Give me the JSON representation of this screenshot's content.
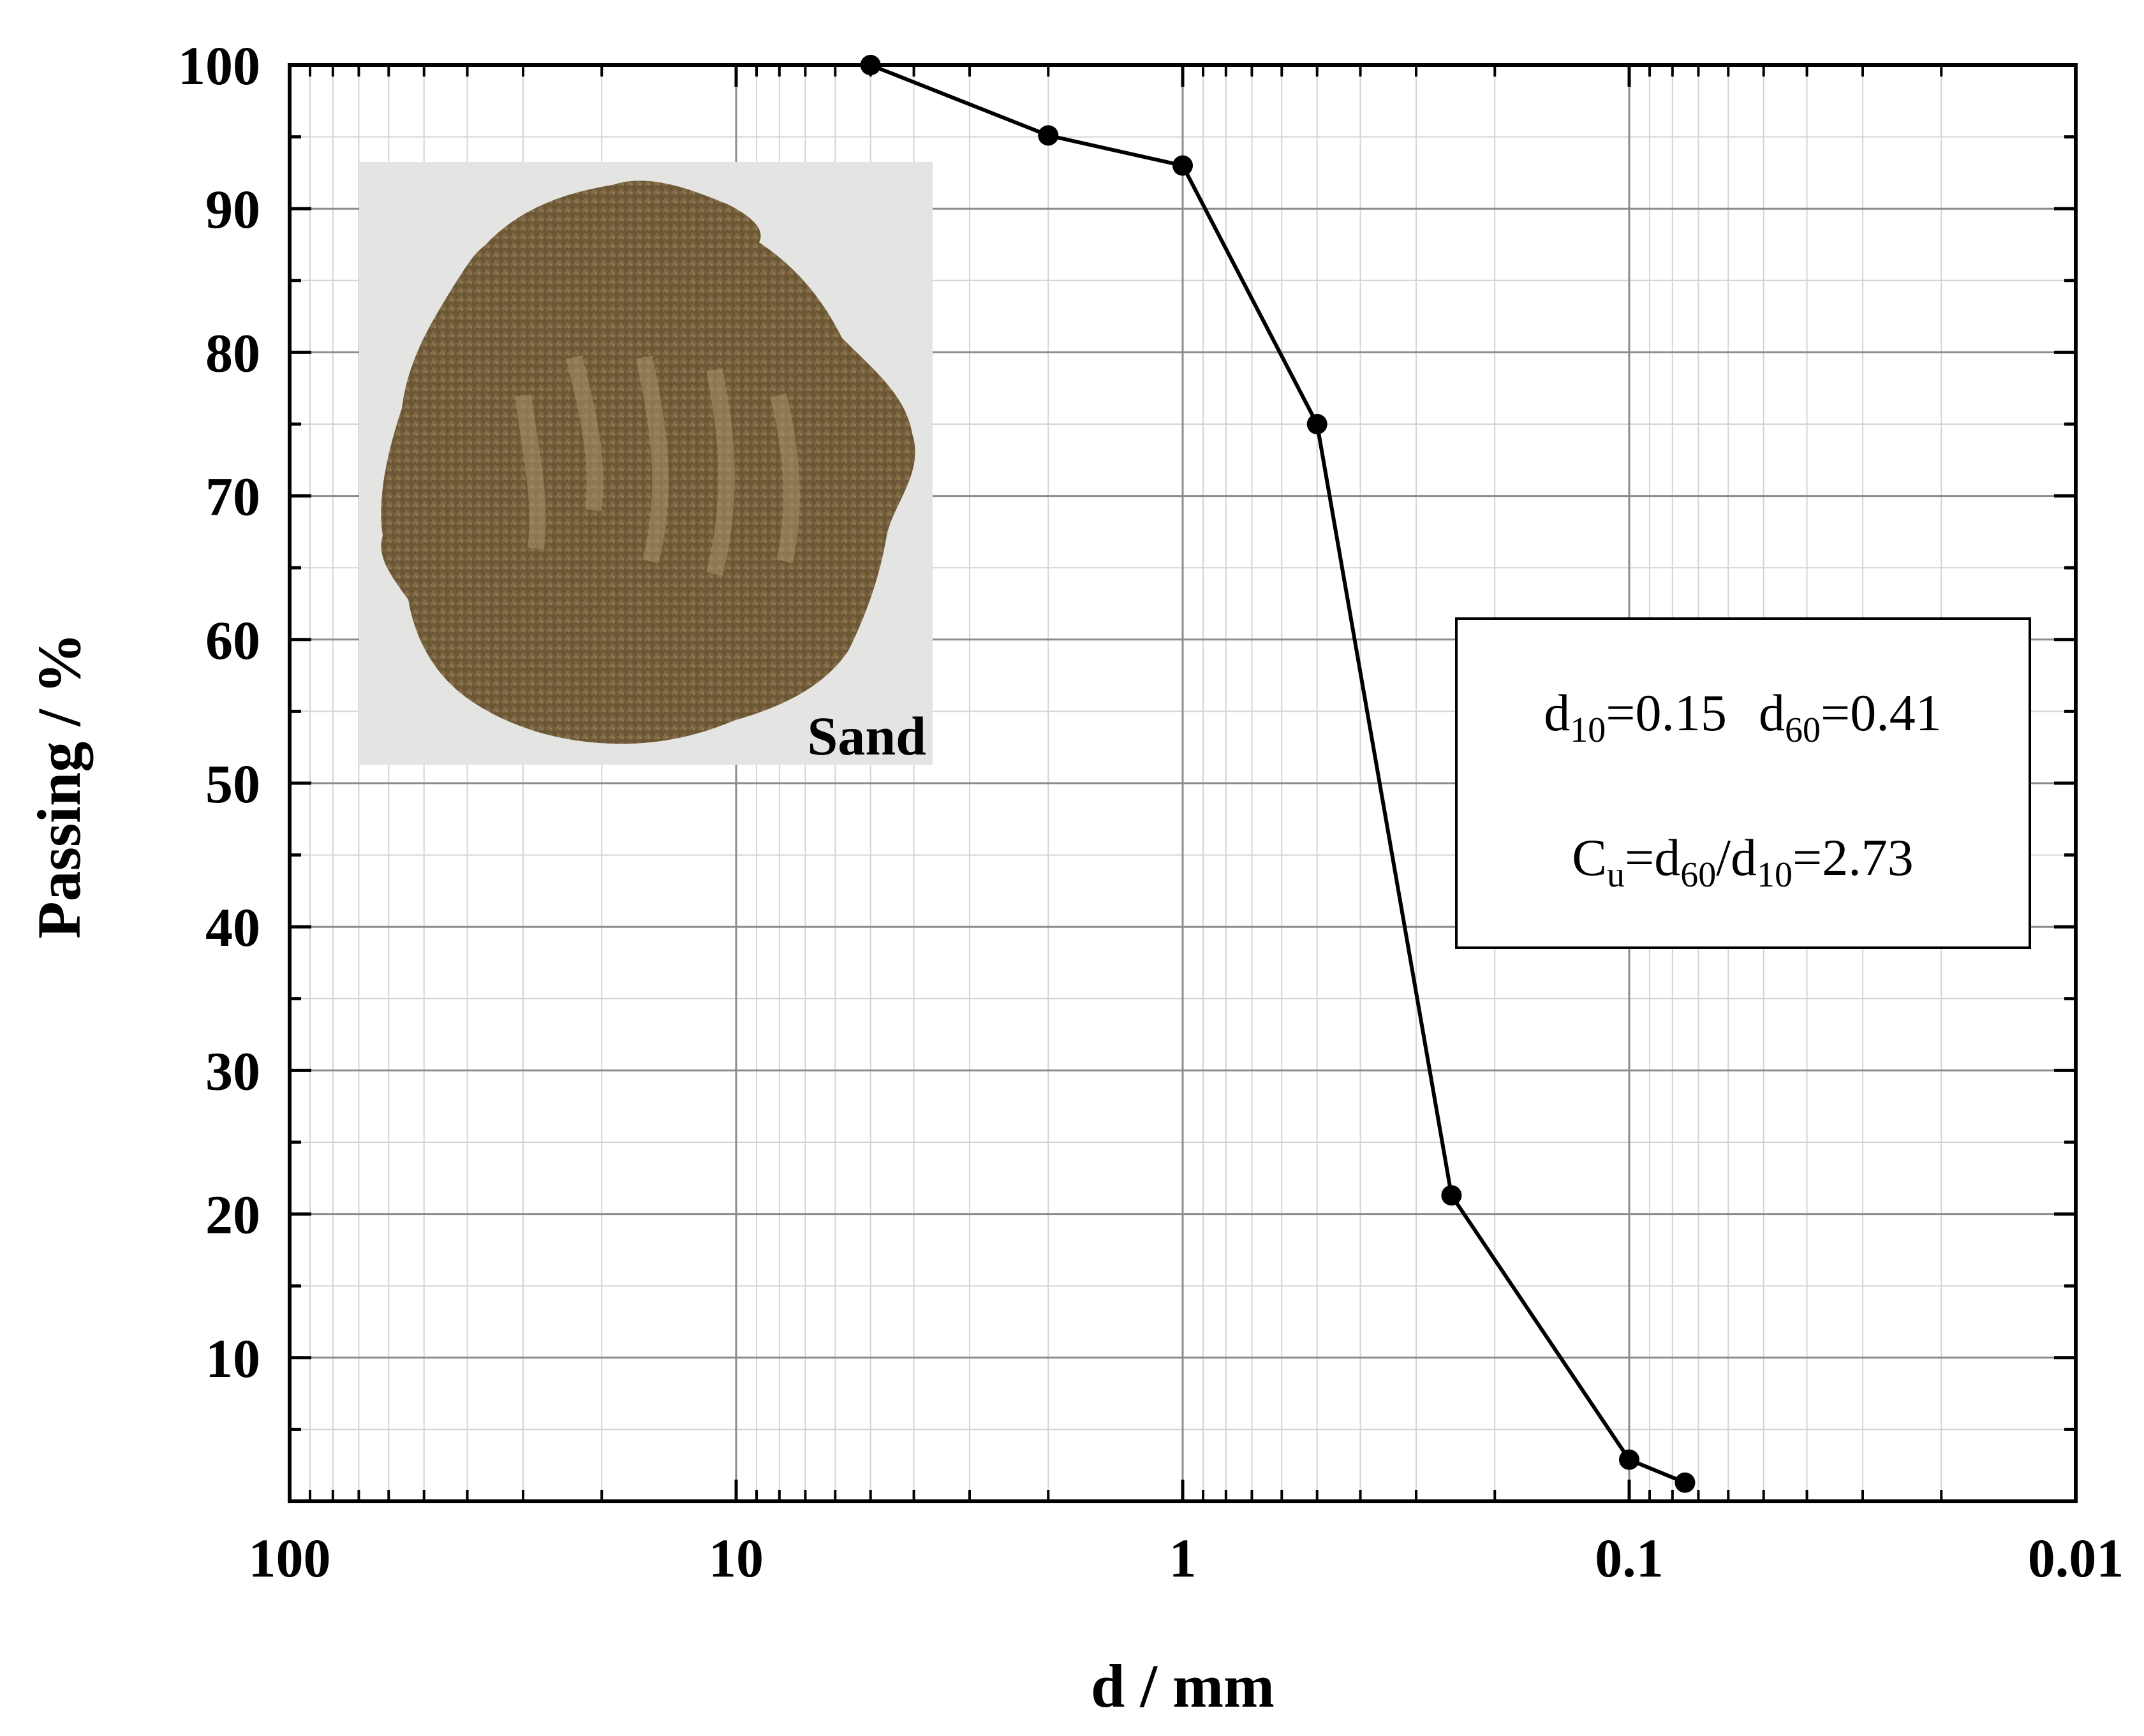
{
  "chart_data": {
    "type": "line",
    "title": "",
    "xlabel": "d / mm",
    "ylabel": "Passing / %",
    "x_scale": "log",
    "x_reversed": true,
    "xlim": [
      100,
      0.01
    ],
    "ylim": [
      0,
      100
    ],
    "x_tick_labels": [
      "100",
      "10",
      "1",
      "0.1",
      "0.01"
    ],
    "y_tick_labels": [
      "10",
      "20",
      "30",
      "40",
      "50",
      "60",
      "70",
      "80",
      "90",
      "100"
    ],
    "grid": true,
    "series": [
      {
        "x": [
          5,
          2,
          1,
          0.5,
          0.25,
          0.1,
          0.075
        ],
        "y": [
          100,
          95.1,
          93.0,
          75.0,
          21.3,
          2.9,
          1.3
        ],
        "color": "#000000",
        "marker": "circle"
      }
    ],
    "inset": {
      "caption": "Sand",
      "icon": "sand-pile-photo"
    },
    "annotation": {
      "line1": {
        "d10_sym": "d",
        "d10_sub": "10",
        "d10_val": "=0.15",
        "d60_sym": "d",
        "d60_sub": "60",
        "d60_val": "=0.41"
      },
      "line2": {
        "cu_sym": "C",
        "cu_sub": "u",
        "eq1": "=d",
        "sub60": "60",
        "slash": "/d",
        "sub10": "10",
        "eq2": "=2.73"
      }
    }
  }
}
